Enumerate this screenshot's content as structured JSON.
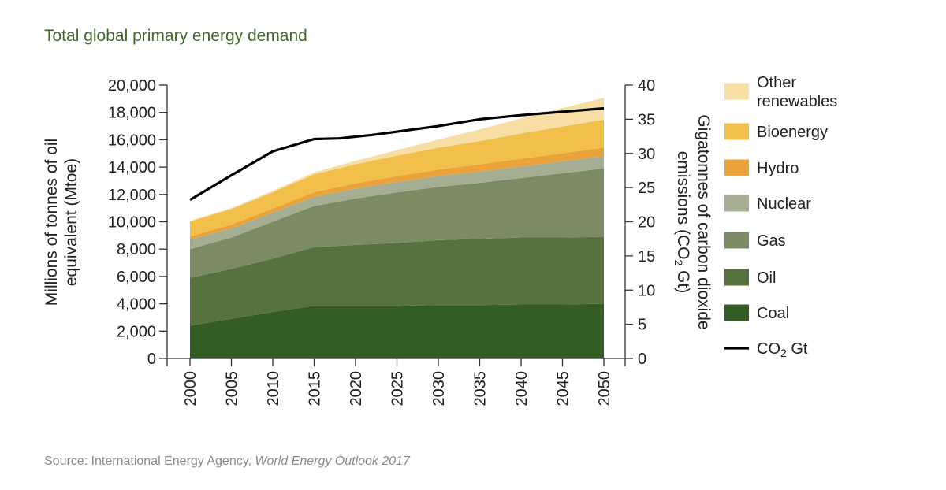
{
  "title": "Total global primary energy demand",
  "source": {
    "prefix": "Source: International Energy Agency, ",
    "publication": "World Energy Outlook 2017"
  },
  "chart_data": {
    "type": "area",
    "stacked": true,
    "x": [
      2000,
      2005,
      2010,
      2015,
      2020,
      2025,
      2030,
      2035,
      2040,
      2045,
      2050
    ],
    "x_tick_labels": [
      "2000",
      "2005",
      "2010",
      "2015",
      "2020",
      "2025",
      "2030",
      "2035",
      "2040",
      "2045",
      "2050"
    ],
    "left_axis": {
      "label_line1": "Millions of tonnes of oil",
      "label_line2": "equivalent (Mtoe)",
      "ylim": [
        0,
        20000
      ],
      "ticks": [
        "0",
        "2,000",
        "4,000",
        "6,000",
        "8,000",
        "10,000",
        "12,000",
        "14,000",
        "16,000",
        "18,000",
        "20,000"
      ]
    },
    "right_axis": {
      "label_line1": "Gigatonnes of carbon dioxide",
      "label_line2_prefix": "emissions (CO",
      "label_line2_sub": "2",
      "label_line2_suffix": " Gt)",
      "ylim": [
        0,
        40
      ],
      "ticks": [
        "0",
        "5",
        "10",
        "15",
        "20",
        "25",
        "30",
        "35",
        "40"
      ]
    },
    "series": [
      {
        "name": "Coal",
        "color": "#345c25",
        "values": [
          2400,
          2900,
          3400,
          3850,
          3850,
          3850,
          3900,
          3900,
          3950,
          3950,
          4000
        ]
      },
      {
        "name": "Oil",
        "color": "#58723f",
        "values": [
          3500,
          3650,
          3900,
          4300,
          4450,
          4600,
          4750,
          4850,
          4900,
          4900,
          4900
        ]
      },
      {
        "name": "Gas",
        "color": "#7b8c64",
        "values": [
          2100,
          2300,
          2700,
          3000,
          3400,
          3700,
          3900,
          4100,
          4350,
          4700,
          5000
        ]
      },
      {
        "name": "Nuclear",
        "color": "#a5ae92",
        "values": [
          700,
          680,
          660,
          680,
          720,
          760,
          800,
          830,
          850,
          870,
          900
        ]
      },
      {
        "name": "Hydro",
        "color": "#e9a33a",
        "values": [
          230,
          260,
          300,
          340,
          390,
          430,
          470,
          520,
          560,
          590,
          630
        ]
      },
      {
        "name": "Bioenergy",
        "color": "#f2c04a",
        "values": [
          1100,
          1150,
          1200,
          1300,
          1400,
          1500,
          1600,
          1700,
          1850,
          1950,
          2050
        ]
      },
      {
        "name_line1": "Other",
        "name_line2": "renewables",
        "name": "Other renewables",
        "color": "#f7dea4",
        "values": [
          40,
          60,
          100,
          150,
          250,
          400,
          600,
          850,
          1100,
          1350,
          1600
        ]
      }
    ],
    "line_series": {
      "name_prefix": "CO",
      "name_sub": "2",
      "name_suffix": " Gt",
      "name": "CO2 Gt",
      "color": "#000000",
      "axis": "right",
      "x": [
        2000,
        2005,
        2010,
        2015,
        2018,
        2022,
        2030,
        2035,
        2040,
        2050
      ],
      "values": [
        23.2,
        26.8,
        30.3,
        32.1,
        32.2,
        32.7,
        34.0,
        35.0,
        35.6,
        36.6
      ]
    },
    "legend_position": "right"
  }
}
